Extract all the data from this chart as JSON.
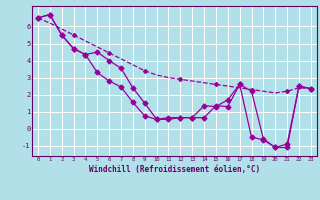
{
  "xlabel": "Windchill (Refroidissement éolien,°C)",
  "background_color": "#b2e0e8",
  "grid_color": "#ffffff",
  "line_color": "#990099",
  "x": [
    0,
    1,
    2,
    3,
    4,
    5,
    6,
    7,
    8,
    9,
    10,
    11,
    12,
    13,
    14,
    15,
    16,
    17,
    18,
    19,
    20,
    21,
    22,
    23
  ],
  "line_solid1": [
    6.5,
    6.7,
    5.5,
    4.7,
    4.35,
    3.3,
    2.8,
    2.45,
    1.55,
    0.75,
    0.55,
    0.65,
    0.65,
    0.65,
    1.35,
    1.3,
    1.7,
    2.6,
    -0.5,
    -0.65,
    -1.1,
    -0.9,
    2.5,
    2.35
  ],
  "line_solid2": [
    6.5,
    6.7,
    5.5,
    4.7,
    4.35,
    4.5,
    4.0,
    3.55,
    2.4,
    1.5,
    0.55,
    0.55,
    0.65,
    0.65,
    0.65,
    1.35,
    1.3,
    2.6,
    2.2,
    -0.6,
    -1.1,
    -1.1,
    2.5,
    2.35
  ],
  "line_dashed": [
    6.5,
    6.2,
    5.85,
    5.5,
    5.15,
    4.8,
    4.45,
    4.1,
    3.75,
    3.4,
    3.15,
    3.0,
    2.9,
    2.8,
    2.7,
    2.6,
    2.5,
    2.4,
    2.3,
    2.2,
    2.1,
    2.2,
    2.4,
    2.35
  ],
  "ylim": [
    -1.6,
    7.2
  ],
  "yticks": [
    -1,
    0,
    1,
    2,
    3,
    4,
    5,
    6
  ],
  "xlim": [
    -0.5,
    23.5
  ],
  "figsize": [
    3.2,
    2.0
  ],
  "dpi": 100
}
